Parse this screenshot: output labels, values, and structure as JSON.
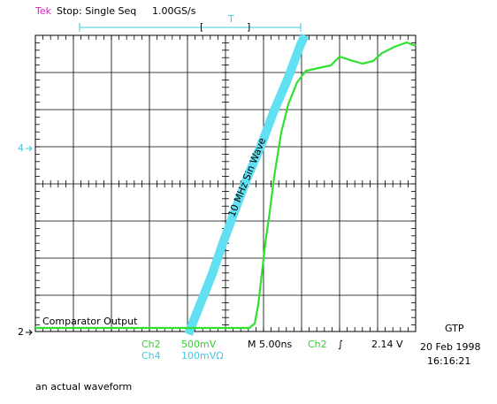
{
  "header": {
    "brand": "Tek",
    "status": "Stop: Single Seq",
    "rate": "1.00GS/s",
    "bracket_left": "[",
    "trigger": "T",
    "bracket_right": "]"
  },
  "markers": {
    "ch4": "4",
    "ch2": "2"
  },
  "annotations": {
    "comparator": "Comparator Output",
    "sine": "10 MHz Sin Wave"
  },
  "readout": {
    "ch2_name": "Ch2",
    "ch2_scale": "500mV",
    "ch4_name": "Ch4",
    "ch4_scale": "100mVΩ",
    "timebase": "M 5.00ns",
    "trig_ch": "Ch2",
    "trig_slope": "∫",
    "trig_level": "2.14 V"
  },
  "stamp": {
    "site": "GTP",
    "date": "20 Feb 1998",
    "time": "16:16:21"
  },
  "caption": "an actual waveform"
}
